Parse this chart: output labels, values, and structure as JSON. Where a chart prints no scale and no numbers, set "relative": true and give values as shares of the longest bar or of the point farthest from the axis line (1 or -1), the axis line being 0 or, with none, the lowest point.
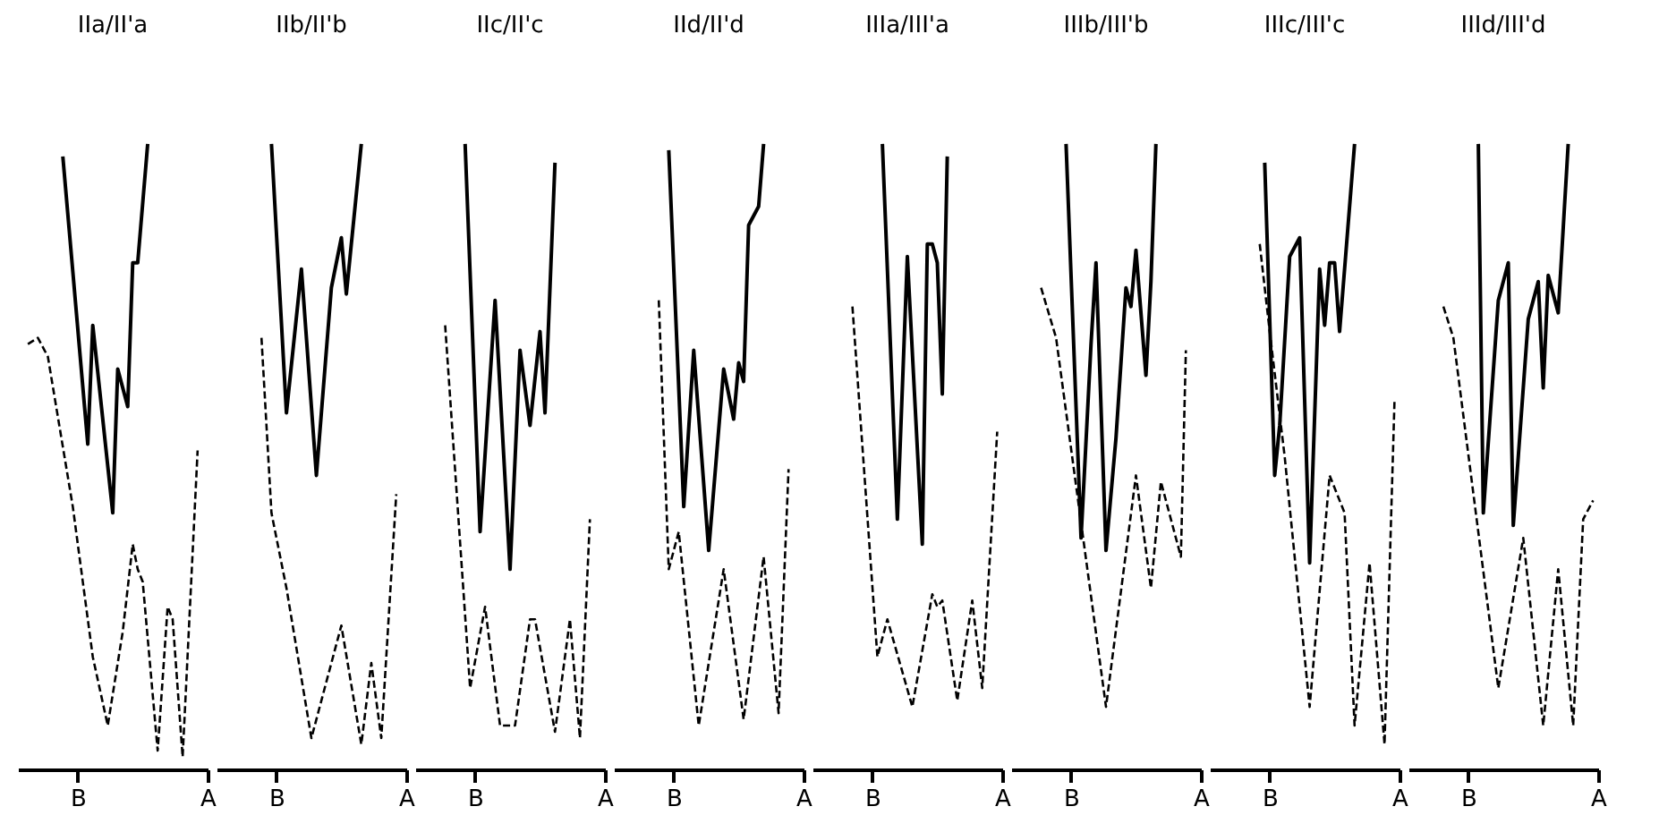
{
  "chart_data": [
    {
      "type": "line",
      "title": "IIa/II'a",
      "relative": true,
      "categories": [
        null,
        null,
        null,
        null,
        null,
        null,
        null,
        null,
        null,
        null,
        null,
        null,
        "B",
        null,
        null,
        null,
        null,
        null,
        null,
        null,
        null,
        null,
        null,
        null,
        null,
        null,
        null,
        null,
        null,
        null,
        null,
        null,
        null,
        null,
        null,
        null,
        null,
        null,
        "A"
      ],
      "series": [
        {
          "color": "#000000",
          "line_style": "solid",
          "values": [
            null,
            null,
            null,
            null,
            null,
            null,
            null,
            null,
            null,
            0.98,
            null,
            null,
            null,
            null,
            0.52,
            0.71,
            null,
            null,
            null,
            0.41,
            0.64,
            null,
            0.58,
            0.81,
            0.81,
            null,
            1.0,
            null,
            null,
            null,
            null,
            null,
            null,
            null,
            null,
            null,
            null,
            null,
            null
          ]
        },
        {
          "color": "#000000",
          "line_style": "dashed",
          "values": [
            null,
            null,
            0.68,
            null,
            0.69,
            null,
            0.66,
            null,
            null,
            null,
            null,
            0.42,
            null,
            null,
            null,
            0.18,
            null,
            null,
            0.07,
            null,
            null,
            0.22,
            null,
            0.36,
            0.32,
            0.3,
            null,
            null,
            0.03,
            null,
            0.26,
            0.24,
            null,
            0.02,
            null,
            null,
            0.51,
            null,
            null
          ]
        }
      ]
    },
    {
      "type": "line",
      "title": "IIb/II'b",
      "relative": true,
      "categories": [
        null,
        null,
        null,
        null,
        null,
        null,
        null,
        null,
        null,
        null,
        null,
        null,
        "B",
        null,
        null,
        null,
        null,
        null,
        null,
        null,
        null,
        null,
        null,
        null,
        null,
        null,
        null,
        null,
        null,
        null,
        null,
        null,
        null,
        null,
        null,
        null,
        null,
        null,
        "A"
      ],
      "series": [
        {
          "color": "#000000",
          "line_style": "solid",
          "values": [
            null,
            null,
            null,
            null,
            null,
            null,
            null,
            null,
            null,
            null,
            null,
            1.0,
            null,
            null,
            0.57,
            null,
            null,
            0.8,
            null,
            null,
            0.47,
            null,
            null,
            0.77,
            null,
            0.85,
            0.76,
            null,
            null,
            1.0,
            null,
            null,
            null,
            null,
            null,
            null,
            null,
            null,
            null
          ]
        },
        {
          "color": "#000000",
          "line_style": "dashed",
          "values": [
            null,
            null,
            null,
            null,
            null,
            null,
            null,
            null,
            null,
            0.69,
            null,
            0.41,
            null,
            null,
            0.29,
            null,
            null,
            null,
            null,
            0.05,
            null,
            null,
            null,
            null,
            null,
            0.23,
            null,
            null,
            null,
            0.04,
            null,
            0.17,
            null,
            0.05,
            null,
            null,
            0.44,
            null,
            null
          ]
        }
      ]
    },
    {
      "type": "line",
      "title": "IIc/II'c",
      "relative": true,
      "categories": [
        null,
        null,
        null,
        null,
        null,
        null,
        null,
        null,
        null,
        null,
        null,
        null,
        "B",
        null,
        null,
        null,
        null,
        null,
        null,
        null,
        null,
        null,
        null,
        null,
        null,
        null,
        null,
        null,
        null,
        null,
        null,
        null,
        null,
        null,
        null,
        null,
        null,
        null,
        "A"
      ],
      "series": [
        {
          "color": "#000000",
          "line_style": "solid",
          "values": [
            null,
            null,
            null,
            null,
            null,
            null,
            null,
            null,
            null,
            null,
            1.0,
            null,
            null,
            0.38,
            null,
            null,
            0.75,
            null,
            null,
            0.32,
            null,
            0.67,
            null,
            0.55,
            null,
            0.7,
            0.57,
            null,
            0.97,
            null,
            null,
            null,
            null,
            null,
            null,
            null,
            null,
            null,
            null
          ]
        },
        {
          "color": "#000000",
          "line_style": "dashed",
          "values": [
            null,
            null,
            null,
            null,
            null,
            null,
            0.71,
            null,
            null,
            null,
            null,
            0.13,
            null,
            null,
            0.26,
            null,
            null,
            0.07,
            null,
            null,
            0.07,
            null,
            null,
            0.24,
            0.24,
            null,
            null,
            null,
            0.06,
            null,
            null,
            0.24,
            null,
            0.05,
            null,
            0.4,
            null,
            null,
            null
          ]
        }
      ]
    },
    {
      "type": "line",
      "title": "IId/II'd",
      "relative": true,
      "categories": [
        null,
        null,
        null,
        null,
        null,
        null,
        null,
        null,
        null,
        null,
        null,
        null,
        "B",
        null,
        null,
        null,
        null,
        null,
        null,
        null,
        null,
        null,
        null,
        null,
        null,
        null,
        null,
        null,
        null,
        null,
        null,
        null,
        null,
        null,
        null,
        null,
        null,
        null,
        "A"
      ],
      "series": [
        {
          "color": "#000000",
          "line_style": "solid",
          "values": [
            null,
            null,
            null,
            null,
            null,
            null,
            null,
            null,
            null,
            null,
            null,
            0.99,
            null,
            null,
            0.42,
            null,
            0.67,
            null,
            null,
            0.35,
            null,
            null,
            0.64,
            null,
            0.56,
            0.65,
            0.62,
            0.87,
            null,
            0.9,
            1.0,
            null,
            null,
            null,
            null,
            null,
            null,
            null,
            null
          ]
        },
        {
          "color": "#000000",
          "line_style": "dashed",
          "values": [
            null,
            null,
            null,
            null,
            null,
            null,
            null,
            null,
            null,
            0.75,
            null,
            0.32,
            null,
            0.38,
            null,
            null,
            null,
            0.07,
            null,
            null,
            null,
            null,
            0.32,
            null,
            null,
            null,
            0.08,
            null,
            null,
            null,
            0.34,
            null,
            null,
            0.09,
            null,
            0.48,
            null,
            null,
            null
          ]
        }
      ]
    },
    {
      "type": "line",
      "title": "IIIa/III'a",
      "relative": true,
      "categories": [
        null,
        null,
        null,
        null,
        null,
        null,
        null,
        null,
        null,
        null,
        null,
        null,
        "B",
        null,
        null,
        null,
        null,
        null,
        null,
        null,
        null,
        null,
        null,
        null,
        null,
        null,
        null,
        null,
        null,
        null,
        null,
        null,
        null,
        null,
        null,
        null,
        null,
        null,
        "A"
      ],
      "series": [
        {
          "color": "#000000",
          "line_style": "solid",
          "values": [
            null,
            null,
            null,
            null,
            null,
            null,
            null,
            null,
            null,
            null,
            null,
            null,
            null,
            null,
            1.0,
            null,
            null,
            0.4,
            null,
            0.82,
            null,
            null,
            0.36,
            0.84,
            0.84,
            0.81,
            0.6,
            0.98,
            null,
            null,
            null,
            null,
            null,
            null,
            null,
            null,
            null,
            null,
            null
          ]
        },
        {
          "color": "#000000",
          "line_style": "dashed",
          "values": [
            null,
            null,
            null,
            null,
            null,
            null,
            null,
            null,
            0.74,
            null,
            null,
            null,
            null,
            0.18,
            null,
            0.24,
            null,
            null,
            null,
            null,
            0.1,
            null,
            null,
            null,
            0.28,
            0.26,
            0.27,
            null,
            null,
            0.11,
            null,
            null,
            0.27,
            null,
            0.13,
            null,
            null,
            0.54,
            null
          ]
        }
      ]
    },
    {
      "type": "line",
      "title": "IIIb/III'b",
      "relative": true,
      "categories": [
        null,
        null,
        null,
        null,
        null,
        null,
        null,
        null,
        null,
        null,
        null,
        null,
        "B",
        null,
        null,
        null,
        null,
        null,
        null,
        null,
        null,
        null,
        null,
        null,
        null,
        null,
        null,
        null,
        null,
        null,
        null,
        null,
        null,
        null,
        null,
        null,
        null,
        null,
        "A"
      ],
      "series": [
        {
          "color": "#000000",
          "line_style": "solid",
          "values": [
            null,
            null,
            null,
            null,
            null,
            null,
            null,
            null,
            null,
            null,
            null,
            1.0,
            null,
            null,
            0.37,
            null,
            0.68,
            0.81,
            null,
            0.35,
            null,
            0.53,
            null,
            0.77,
            0.74,
            0.83,
            null,
            0.63,
            0.78,
            1.0,
            null,
            null,
            null,
            null,
            null,
            null,
            null,
            null,
            null
          ]
        },
        {
          "color": "#000000",
          "line_style": "dashed",
          "values": [
            null,
            null,
            null,
            null,
            null,
            null,
            0.77,
            null,
            null,
            0.69,
            null,
            null,
            null,
            null,
            null,
            null,
            null,
            null,
            null,
            0.1,
            null,
            null,
            null,
            null,
            null,
            0.47,
            null,
            null,
            0.29,
            null,
            0.46,
            null,
            null,
            null,
            0.34,
            0.67,
            null,
            null,
            null
          ]
        }
      ]
    },
    {
      "type": "line",
      "title": "IIIc/III'c",
      "relative": true,
      "categories": [
        null,
        null,
        null,
        null,
        null,
        null,
        null,
        null,
        null,
        null,
        null,
        null,
        "B",
        null,
        null,
        null,
        null,
        null,
        null,
        null,
        null,
        null,
        null,
        null,
        null,
        null,
        null,
        null,
        null,
        null,
        null,
        null,
        null,
        null,
        null,
        null,
        null,
        null,
        "A"
      ],
      "series": [
        {
          "color": "#000000",
          "line_style": "solid",
          "values": [
            null,
            null,
            null,
            null,
            null,
            null,
            null,
            null,
            null,
            null,
            null,
            0.97,
            null,
            0.47,
            0.55,
            null,
            0.82,
            null,
            0.85,
            null,
            0.33,
            null,
            0.8,
            0.71,
            0.81,
            0.81,
            0.7,
            null,
            null,
            1.0,
            null,
            null,
            null,
            null,
            null,
            null,
            null,
            null,
            null
          ]
        },
        {
          "color": "#000000",
          "line_style": "dashed",
          "values": [
            null,
            null,
            null,
            null,
            null,
            null,
            null,
            null,
            null,
            null,
            0.84,
            null,
            0.7,
            null,
            null,
            0.5,
            null,
            null,
            null,
            null,
            0.1,
            null,
            null,
            null,
            0.47,
            null,
            null,
            0.41,
            null,
            0.07,
            null,
            null,
            0.33,
            null,
            null,
            0.04,
            null,
            0.59,
            null
          ]
        }
      ]
    },
    {
      "type": "line",
      "title": "IIId/III'd",
      "relative": true,
      "categories": [
        null,
        null,
        null,
        null,
        null,
        null,
        null,
        null,
        null,
        null,
        null,
        null,
        "B",
        null,
        null,
        null,
        null,
        null,
        null,
        null,
        null,
        null,
        null,
        null,
        null,
        null,
        null,
        null,
        null,
        null,
        null,
        null,
        null,
        null,
        null,
        null,
        null,
        null,
        "A"
      ],
      "series": [
        {
          "color": "#000000",
          "line_style": "solid",
          "values": [
            null,
            null,
            null,
            null,
            null,
            null,
            null,
            null,
            null,
            null,
            null,
            null,
            null,
            null,
            1.0,
            0.41,
            null,
            null,
            0.75,
            null,
            0.81,
            0.39,
            null,
            null,
            0.72,
            null,
            0.78,
            0.61,
            0.79,
            null,
            0.73,
            null,
            1.0,
            null,
            null,
            null,
            null,
            null,
            null
          ]
        },
        {
          "color": "#000000",
          "line_style": "dashed",
          "values": [
            null,
            null,
            null,
            null,
            null,
            null,
            null,
            0.74,
            null,
            0.69,
            null,
            null,
            null,
            null,
            null,
            null,
            null,
            null,
            0.13,
            null,
            null,
            null,
            null,
            0.37,
            null,
            null,
            null,
            0.07,
            null,
            null,
            0.32,
            null,
            null,
            0.07,
            null,
            0.4,
            null,
            0.43,
            null
          ]
        }
      ]
    }
  ]
}
